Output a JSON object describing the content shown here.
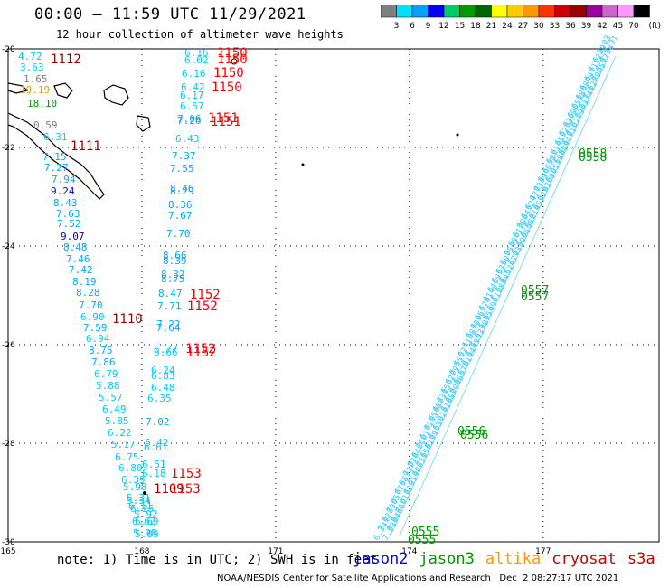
{
  "title": "00:00 – 11:59 UTC 11/29/2021",
  "subtitle": "12 hour collection of altimeter wave heights",
  "colorbar": {
    "labels": [
      "3",
      "6",
      "9",
      "12",
      "15",
      "18",
      "21",
      "24",
      "27",
      "30",
      "33",
      "36",
      "39",
      "42",
      "45",
      "70"
    ],
    "unit": "(ft)",
    "colors": [
      "#808080",
      "#00e0ff",
      "#00a0ff",
      "#0000ff",
      "#00cc66",
      "#009900",
      "#006600",
      "#ffff00",
      "#ffcc00",
      "#ff9900",
      "#ff3300",
      "#cc0000",
      "#990000",
      "#990099",
      "#cc66cc",
      "#ff99ff",
      "#000000"
    ]
  },
  "axes": {
    "x_ticks": [
      "165",
      "168",
      "171",
      "174",
      "177"
    ],
    "y_ticks": [
      "-20",
      "-22",
      "-24",
      "-26",
      "-28",
      "-30"
    ]
  },
  "note": "note: 1) Time is in UTC; 2) SWH is in feet",
  "legend": [
    {
      "label": "jason2",
      "color": "#0000ff"
    },
    {
      "label": "jason3",
      "color": "#009900"
    },
    {
      "label": "altika",
      "color": "#ff9900"
    },
    {
      "label": "cryosat",
      "color": "#cc0000"
    },
    {
      "label": "s3a",
      "color": "#cc0000"
    }
  ],
  "footer": "NOAA/NESDIS Center for Satellite Applications and Research   Dec  2 08:27:17 UTC 2021",
  "track_left": [
    {
      "v": "4.72",
      "c": "#00ccff"
    },
    {
      "v": "3.63",
      "c": "#00ccff"
    },
    {
      "v": "1.65",
      "c": "#808080"
    },
    {
      "v": "19.19",
      "c": "#ff9900"
    },
    {
      "v": "18.10",
      "c": "#009900"
    },
    {
      "v": "0.59",
      "c": "#808080"
    },
    {
      "v": "6.31",
      "c": "#00ccff"
    },
    {
      "v": "7.15",
      "c": "#00aaff"
    },
    {
      "v": "7.27",
      "c": "#00aaff"
    },
    {
      "v": "7.94",
      "c": "#00aaff"
    },
    {
      "v": "9.24",
      "c": "#0000ff"
    },
    {
      "v": "8.43",
      "c": "#00aaff"
    },
    {
      "v": "7.63",
      "c": "#00aaff"
    },
    {
      "v": "7.52",
      "c": "#00aaff"
    },
    {
      "v": "9.07",
      "c": "#0000cc"
    },
    {
      "v": "8.48",
      "c": "#00aaff"
    },
    {
      "v": "7.46",
      "c": "#00aaff"
    },
    {
      "v": "7.42",
      "c": "#00aaff"
    },
    {
      "v": "8.19",
      "c": "#00aaff"
    },
    {
      "v": "8.28",
      "c": "#00aaff"
    },
    {
      "v": "7.70",
      "c": "#00aaff"
    },
    {
      "v": "6.90",
      "c": "#00ccff"
    },
    {
      "v": "7.59",
      "c": "#00aaff"
    },
    {
      "v": "6.94",
      "c": "#00ccff"
    },
    {
      "v": "8.75",
      "c": "#00aaff"
    },
    {
      "v": "7.86",
      "c": "#00aaff"
    },
    {
      "v": "6.79",
      "c": "#00ccff"
    },
    {
      "v": "5.88",
      "c": "#00ccff"
    },
    {
      "v": "5.57",
      "c": "#00ccff"
    },
    {
      "v": "6.49",
      "c": "#00ccff"
    },
    {
      "v": "5.85",
      "c": "#00ccff"
    },
    {
      "v": "6.22",
      "c": "#00ccff"
    },
    {
      "v": "5.17",
      "c": "#00ccff"
    },
    {
      "v": "6.75",
      "c": "#00ccff"
    },
    {
      "v": "6.80",
      "c": "#00ccff"
    },
    {
      "v": "6.39",
      "c": "#00ccff"
    },
    {
      "v": "5.98",
      "c": "#00ccff"
    },
    {
      "v": "5.31",
      "c": "#00ccff"
    },
    {
      "v": "6.25",
      "c": "#00ccff"
    },
    {
      "v": "6.62",
      "c": "#00ccff"
    },
    {
      "v": "5.98",
      "c": "#00ccff"
    }
  ],
  "track_mid": [
    {
      "v": "6.16",
      "c": "#00ccff"
    },
    {
      "v": "6.02",
      "c": "#00ccff"
    },
    {
      "v": "6.16",
      "c": "#00ccff"
    },
    {
      "v": "6.42",
      "c": "#00ccff"
    },
    {
      "v": "6.17",
      "c": "#00ccff"
    },
    {
      "v": "6.57",
      "c": "#00ccff"
    },
    {
      "v": "7.06",
      "c": "#00aaff"
    },
    {
      "v": "7.26",
      "c": "#00aaff"
    },
    {
      "v": "6.43",
      "c": "#00ccff"
    },
    {
      "v": "7.37",
      "c": "#00aaff"
    },
    {
      "v": "7.55",
      "c": "#00aaff"
    },
    {
      "v": "8.46",
      "c": "#00aaff"
    },
    {
      "v": "8.29",
      "c": "#00aaff"
    },
    {
      "v": "8.36",
      "c": "#00aaff"
    },
    {
      "v": "7.67",
      "c": "#00aaff"
    },
    {
      "v": "7.70",
      "c": "#00aaff"
    },
    {
      "v": "8.66",
      "c": "#00aaff"
    },
    {
      "v": "8.39",
      "c": "#00aaff"
    },
    {
      "v": "8.32",
      "c": "#00aaff"
    },
    {
      "v": "8.75",
      "c": "#00aaff"
    },
    {
      "v": "8.47",
      "c": "#00aaff"
    },
    {
      "v": "7.71",
      "c": "#00aaff"
    },
    {
      "v": "7.22",
      "c": "#00aaff"
    },
    {
      "v": "7.64",
      "c": "#00aaff"
    },
    {
      "v": "6.77",
      "c": "#00ccff"
    },
    {
      "v": "6.66",
      "c": "#00ccff"
    },
    {
      "v": "6.24",
      "c": "#00ccff"
    },
    {
      "v": "6.83",
      "c": "#00ccff"
    },
    {
      "v": "6.48",
      "c": "#00ccff"
    },
    {
      "v": "6.35",
      "c": "#00ccff"
    },
    {
      "v": "7.02",
      "c": "#00aaff"
    },
    {
      "v": "6.42",
      "c": "#00ccff"
    },
    {
      "v": "6.61",
      "c": "#00ccff"
    },
    {
      "v": "6.51",
      "c": "#00ccff"
    },
    {
      "v": "6.18",
      "c": "#00ccff"
    },
    {
      "v": "5.34",
      "c": "#00ccff"
    },
    {
      "v": "6.11",
      "c": "#00ccff"
    },
    {
      "v": "5.92",
      "c": "#00ccff"
    },
    {
      "v": "6.69",
      "c": "#00ccff"
    },
    {
      "v": "5.89",
      "c": "#00ccff"
    }
  ],
  "time_labels": [
    {
      "t": "1112",
      "c": "#990000"
    },
    {
      "t": "1150",
      "c": "#ff0000"
    },
    {
      "t": "1150",
      "c": "#ff0000"
    },
    {
      "t": "1150",
      "c": "#ff0000"
    },
    {
      "t": "1150",
      "c": "#ff0000"
    },
    {
      "t": "1151",
      "c": "#ff0000"
    },
    {
      "t": "1151",
      "c": "#ff0000"
    },
    {
      "t": "1111",
      "c": "#990000"
    },
    {
      "t": "1152",
      "c": "#ff0000"
    },
    {
      "t": "1152",
      "c": "#ff0000"
    },
    {
      "t": "1110",
      "c": "#990000"
    },
    {
      "t": "1152",
      "c": "#ff0000"
    },
    {
      "t": "1152",
      "c": "#ff0000"
    },
    {
      "t": "1153",
      "c": "#ff0000"
    },
    {
      "t": "1109",
      "c": "#990000"
    },
    {
      "t": "1153",
      "c": "#ff0000"
    },
    {
      "t": "0558",
      "c": "#009900"
    },
    {
      "t": "0558",
      "c": "#009900"
    },
    {
      "t": "0557",
      "c": "#009900"
    },
    {
      "t": "0557",
      "c": "#009900"
    },
    {
      "t": "0556",
      "c": "#009900"
    },
    {
      "t": "0556",
      "c": "#009900"
    },
    {
      "t": "0555",
      "c": "#009900"
    },
    {
      "t": "0555",
      "c": "#009900"
    }
  ],
  "right_track_values": [
    "6.34",
    "7.12",
    "6.89",
    "7.05",
    "6.77",
    "6.58",
    "6.91",
    "7.23",
    "6.84",
    "6.66",
    "7.01",
    "6.72",
    "6.95",
    "6.48",
    "6.83",
    "7.15",
    "6.62",
    "6.79",
    "6.55",
    "6.92",
    "6.41",
    "6.88",
    "6.70",
    "6.36",
    "6.57",
    "6.81",
    "6.44",
    "6.69",
    "6.53",
    "6.30",
    "6.75",
    "6.49",
    "6.61",
    "6.28",
    "6.84",
    "6.52",
    "6.47",
    "6.73",
    "6.39",
    "6.66",
    "6.58",
    "6.21",
    "6.45",
    "6.92",
    "6.33",
    "6.60",
    "6.05",
    "6.18",
    "6.88",
    "6.44",
    "6.71",
    "6.02",
    "6.29",
    "6.03"
  ]
}
